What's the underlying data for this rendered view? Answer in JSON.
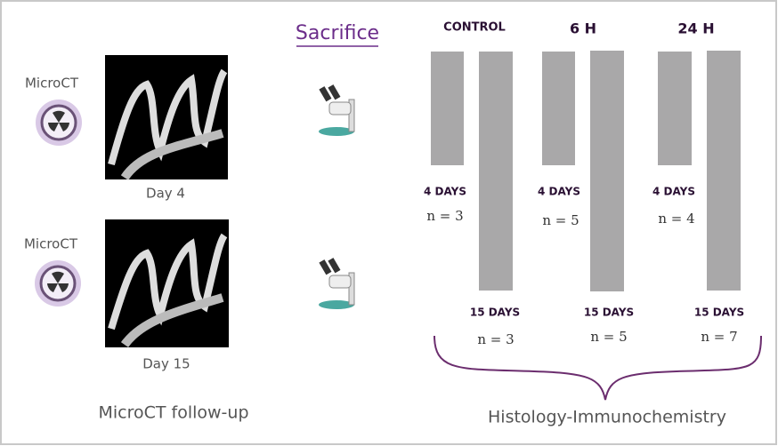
{
  "left": {
    "items": [
      {
        "label": "MicroCT",
        "day": "Day 4"
      },
      {
        "label": "MicroCT",
        "day": "Day 15"
      }
    ],
    "caption": "MicroCT follow-up"
  },
  "sacrifice": "Sacrifice",
  "groups": [
    {
      "title": "CONTROL",
      "short": {
        "label": "4 DAYS",
        "n": "n = 3"
      },
      "long": {
        "label": "15 DAYS",
        "n": "n = 3"
      }
    },
    {
      "title": "6 H",
      "short": {
        "label": "4 DAYS",
        "n": "n = 5"
      },
      "long": {
        "label": "15 DAYS",
        "n": "n = 5"
      }
    },
    {
      "title": "24 H",
      "short": {
        "label": "4 DAYS",
        "n": "n = 4"
      },
      "long": {
        "label": "15 DAYS",
        "n": "n = 7"
      }
    }
  ],
  "caption": "Histology-Immunochemistry"
}
